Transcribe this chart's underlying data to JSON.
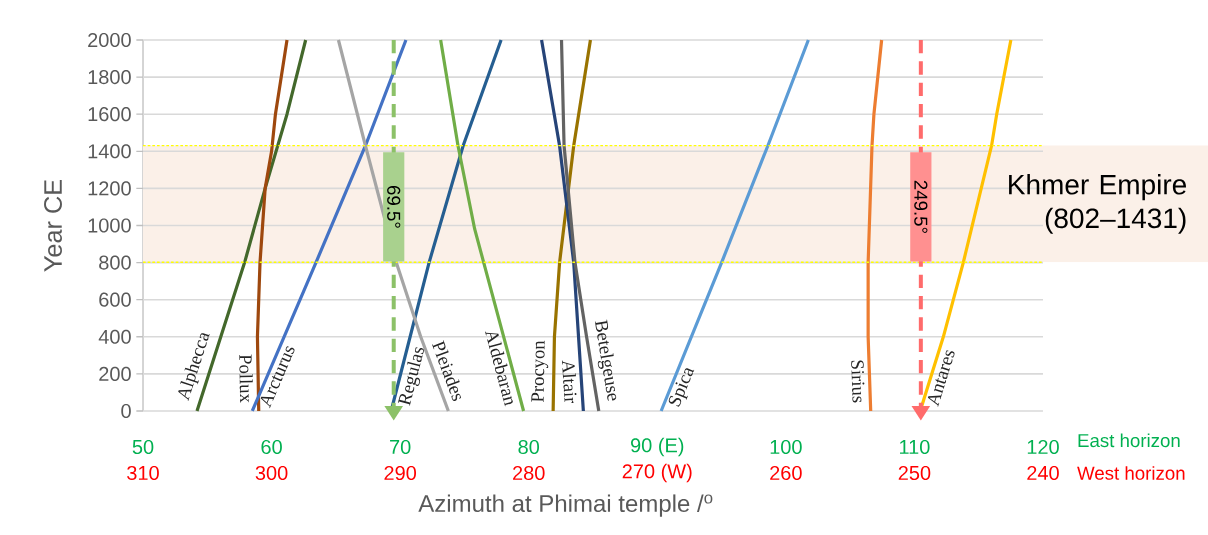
{
  "chart_data": {
    "type": "line",
    "xlabel": "Azimuth at Phimai temple /$^{o}$",
    "ylabel": "Year CE",
    "xlim": [
      50,
      120
    ],
    "xticks": [
      50,
      60,
      70,
      80,
      {
        "value": 90,
        "label": "90 (E)"
      },
      100,
      110,
      120
    ],
    "x2lim": [
      310,
      240
    ],
    "x2ticks": [
      310,
      300,
      290,
      280,
      {
        "value": 270,
        "label": "270 (W)"
      },
      260,
      250,
      240
    ],
    "ylim": [
      0,
      2000
    ],
    "yticks": [
      0,
      200,
      400,
      600,
      800,
      1000,
      1200,
      1400,
      1600,
      1800,
      2000
    ],
    "grid": "y",
    "series": [
      {
        "name": "Alphecca",
        "color": "#43682b",
        "x": [
          54.2,
          57.9,
          59.5,
          61.2,
          62.65
        ],
        "values": [
          0,
          800,
          1200,
          1600,
          2000
        ]
      },
      {
        "name": "Pollux",
        "color": "#9e480e",
        "x": [
          59.0,
          58.9,
          59.1,
          59.3,
          59.5,
          60.0,
          60.3,
          61.2
        ],
        "values": [
          0,
          400,
          800,
          1000,
          1200,
          1400,
          1600,
          2000
        ]
      },
      {
        "name": "Arcturus",
        "color": "#4472c4",
        "x": [
          58.5,
          63.45,
          67.3,
          70.45
        ],
        "values": [
          0,
          800,
          1430,
          2000
        ]
      },
      {
        "name": "Regulas",
        "color": "#255e91",
        "x": [
          69.3,
          72.25,
          74.9,
          77.85
        ],
        "values": [
          0,
          800,
          1430,
          2000
        ]
      },
      {
        "name": "Pleiades",
        "color": "#a5a5a5",
        "x": [
          73.75,
          71.6,
          69.7,
          67.3,
          65.2
        ],
        "values": [
          0,
          400,
          800,
          1430,
          2000
        ]
      },
      {
        "name": "Aldebaran",
        "color": "#70ad47",
        "x": [
          79.6,
          76.5,
          75.8,
          74.5,
          73.15
        ],
        "values": [
          0,
          800,
          980,
          1430,
          2000
        ]
      },
      {
        "name": "Procyon",
        "color": "#997300",
        "x": [
          81.9,
          82.0,
          82.4,
          83.5,
          84.8
        ],
        "values": [
          0,
          400,
          800,
          1430,
          2000
        ]
      },
      {
        "name": "Altair",
        "color": "#264478",
        "x": [
          84.25,
          83.5,
          82.4,
          81.0
        ],
        "values": [
          0,
          800,
          1430,
          2000
        ]
      },
      {
        "name": "Betelgeuse",
        "color": "#636363",
        "x": [
          85.45,
          84.5,
          83.6,
          82.75,
          82.55
        ],
        "values": [
          0,
          400,
          800,
          1430,
          2000
        ]
      },
      {
        "name": "Spica",
        "color": "#5b9bd5",
        "x": [
          90.3,
          95.0,
          98.6,
          101.75
        ],
        "values": [
          0,
          800,
          1430,
          2000
        ]
      },
      {
        "name": "Sirius",
        "color": "#ed7d31",
        "x": [
          106.6,
          106.4,
          106.4,
          106.7,
          106.85,
          107.45
        ],
        "values": [
          0,
          400,
          800,
          1430,
          1600,
          2000
        ]
      },
      {
        "name": "Antares",
        "color": "#ffc000",
        "x": [
          110.45,
          112.25,
          113.8,
          116.0,
          116.4,
          117.5
        ],
        "values": [
          0,
          400,
          800,
          1430,
          1600,
          2000
        ]
      }
    ],
    "ref_lines": [
      {
        "axis": "x",
        "value": 69.5,
        "label": "69.5°",
        "color": "#8cc168",
        "line_style": "dashed"
      },
      {
        "axis": "x2",
        "value": 249.5,
        "label": "249.5°",
        "color": "#ff6b6b",
        "line_style": "dashed"
      },
      {
        "axis": "y",
        "value": 802,
        "color": "#ffff00",
        "line_style": "dotted"
      },
      {
        "axis": "y",
        "value": 1431,
        "color": "#ffff00",
        "line_style": "dotted"
      }
    ],
    "bands": [
      {
        "axis": "y",
        "from": 802,
        "to": 1431,
        "label": "Khmer Empire (802–1431)",
        "color": "#fbf0e8"
      }
    ],
    "annotations": [
      "East horizon",
      "West horizon"
    ]
  }
}
